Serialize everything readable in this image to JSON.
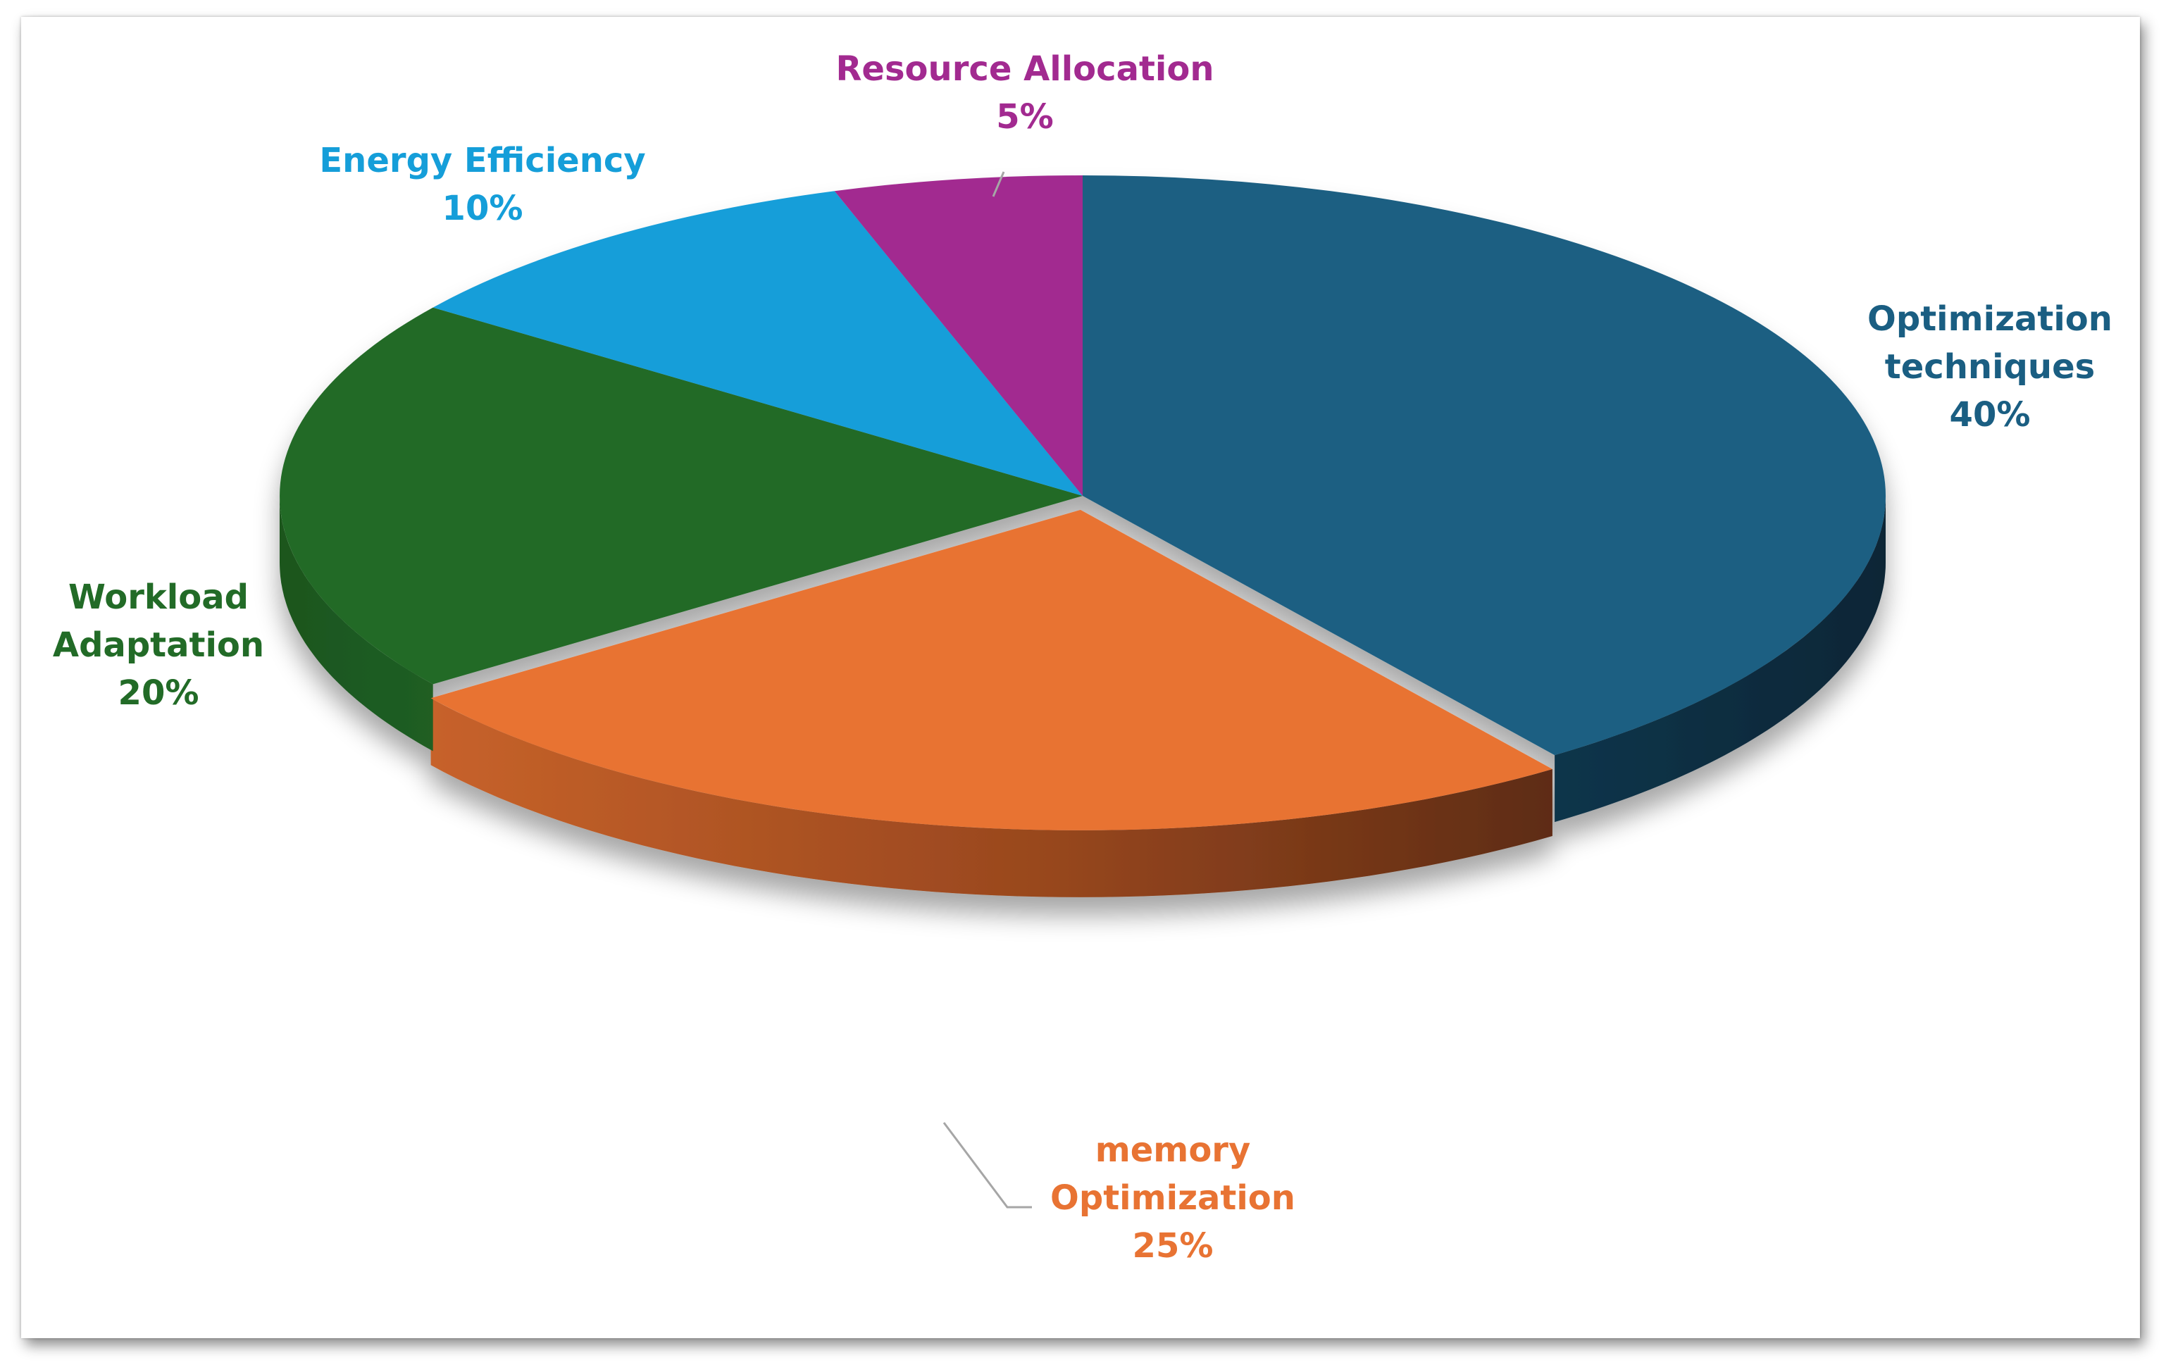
{
  "chart_data": {
    "type": "pie",
    "title": "",
    "style": "3d-exploded-depth",
    "slices": [
      {
        "label_lines": [
          "Optimization",
          "techniques"
        ],
        "percent_label": "40%",
        "value": 40,
        "color": "#1A5E82"
      },
      {
        "label_lines": [
          "memory",
          "Optimization"
        ],
        "percent_label": "25%",
        "value": 25,
        "color": "#E87333"
      },
      {
        "label_lines": [
          "Workload",
          "Adaptation"
        ],
        "percent_label": "20%",
        "value": 20,
        "color": "#226B27"
      },
      {
        "label_lines": [
          "Energy Efficiency"
        ],
        "percent_label": "10%",
        "value": 10,
        "color": "#159ED9"
      },
      {
        "label_lines": [
          "Resource Allocation"
        ],
        "percent_label": "5%",
        "value": 5,
        "color": "#A22A90"
      }
    ],
    "start_angle": "12 o'clock",
    "direction": "clockwise",
    "legend": "none (data labels on slices)"
  }
}
